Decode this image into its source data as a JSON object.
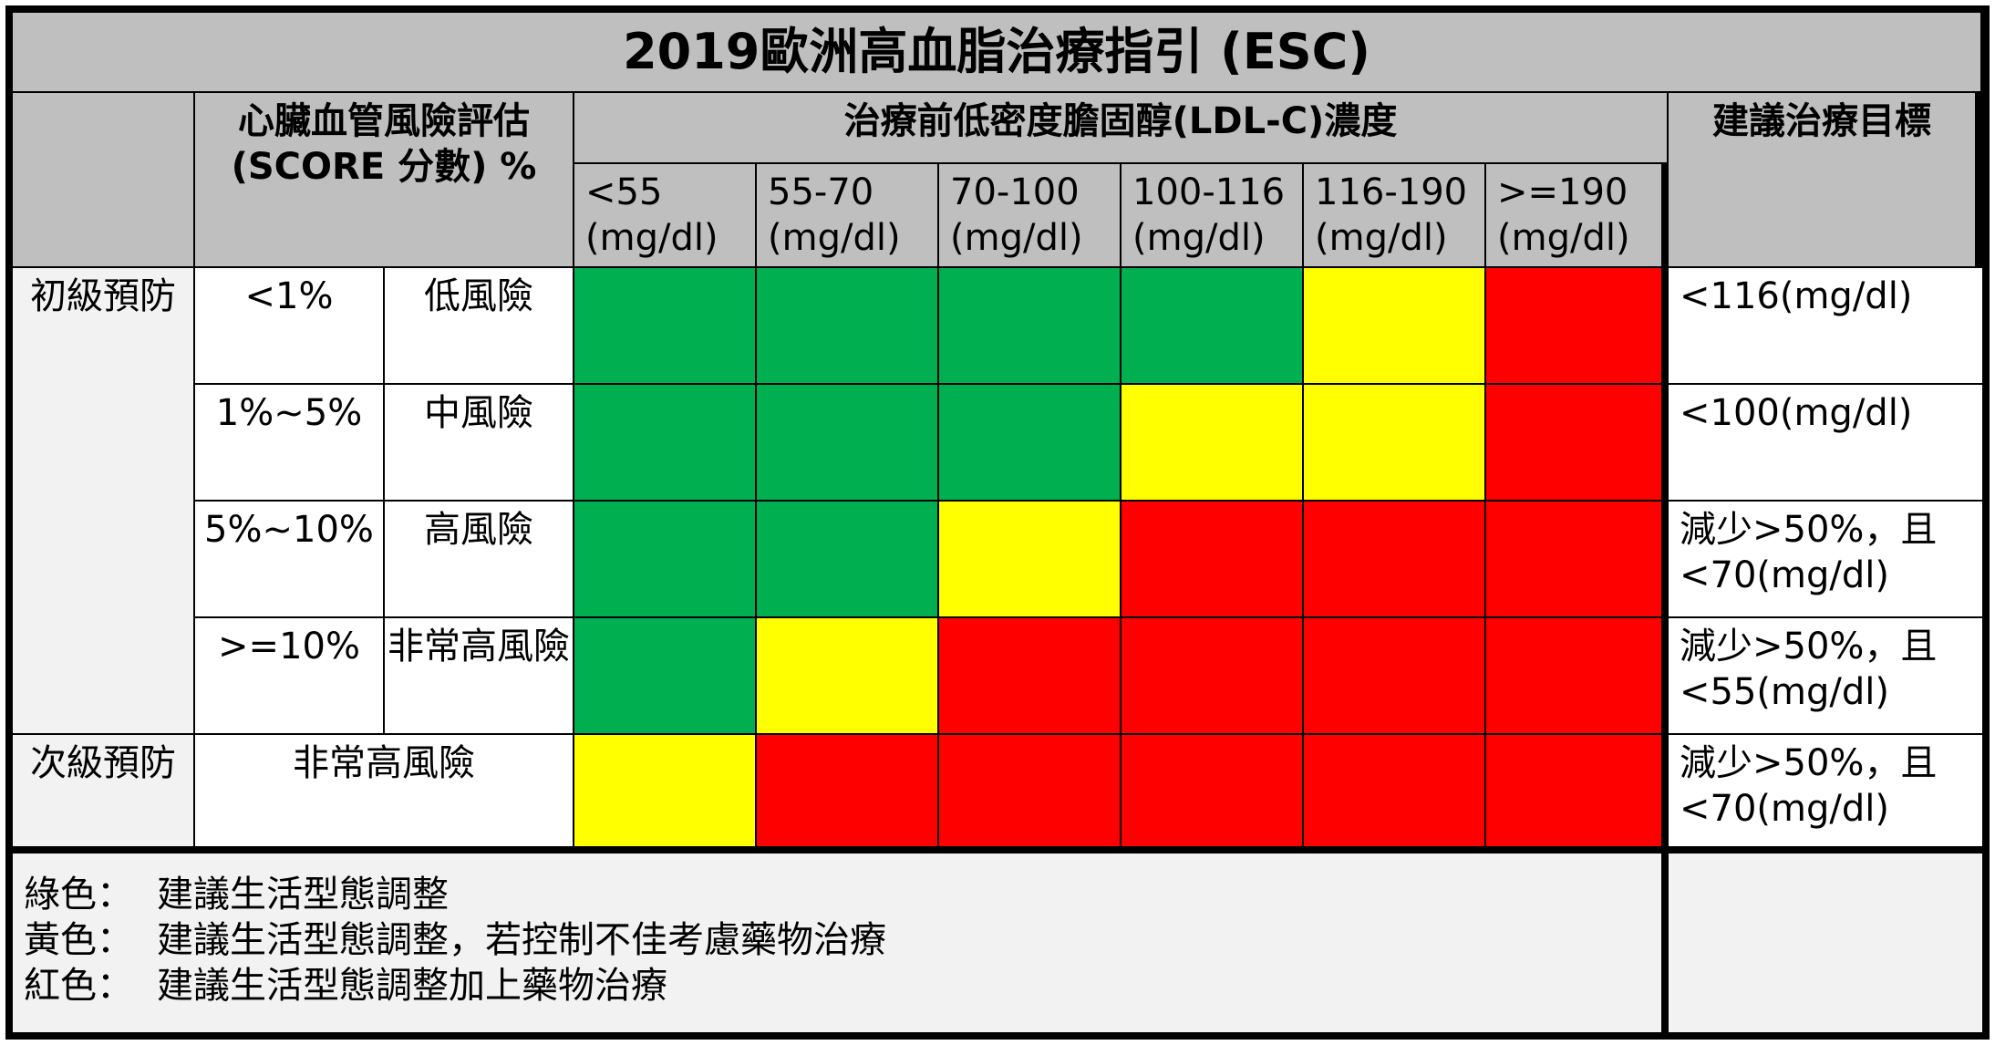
{
  "title": "2019歐洲高血脂治療指引 (ESC)",
  "header": {
    "risk_assessment_line1": "心臟血管風險評估",
    "risk_assessment_line2": "(SCORE 分數) %",
    "ldl_title": "治療前低密度膽固醇(LDL-C)濃度",
    "target_title": "建議治療目標",
    "ldl_ranges": [
      {
        "range": "<55",
        "unit": "(mg/dl)"
      },
      {
        "range": "55-70",
        "unit": "(mg/dl)"
      },
      {
        "range": "70-100",
        "unit": "(mg/dl)"
      },
      {
        "range": "100-116",
        "unit": "(mg/dl)"
      },
      {
        "range": "116-190",
        "unit": "(mg/dl)"
      },
      {
        "range": ">=190",
        "unit": "(mg/dl)"
      }
    ]
  },
  "groups": {
    "primary": "初級預防",
    "secondary": "次級預防"
  },
  "rows": [
    {
      "score": "<1%",
      "risk": "低風險",
      "target": "<116(mg/dl)",
      "colors": [
        "green",
        "green",
        "green",
        "green",
        "yellow",
        "red"
      ]
    },
    {
      "score": "1%~5%",
      "risk": "中風險",
      "target": "<100(mg/dl)",
      "colors": [
        "green",
        "green",
        "green",
        "yellow",
        "yellow",
        "red"
      ]
    },
    {
      "score": "5%~10%",
      "risk": "高風險",
      "target": "減少>50%，且<70(mg/dl)",
      "colors": [
        "green",
        "green",
        "yellow",
        "red",
        "red",
        "red"
      ]
    },
    {
      "score": ">=10%",
      "risk": "非常高風險",
      "target": "減少>50%，且<55(mg/dl)",
      "colors": [
        "green",
        "yellow",
        "red",
        "red",
        "red",
        "red"
      ]
    }
  ],
  "secondary_row": {
    "risk": "非常高風險",
    "target": "減少>50%，且<70(mg/dl)",
    "colors": [
      "yellow",
      "red",
      "red",
      "red",
      "red",
      "red"
    ]
  },
  "palette": {
    "green": "#00b050",
    "yellow": "#ffff00",
    "red": "#ff0000"
  },
  "legend": [
    {
      "key": "綠色：",
      "text": "建議生活型態調整"
    },
    {
      "key": "黃色：",
      "text": "建議生活型態調整，若控制不佳考慮藥物治療"
    },
    {
      "key": "紅色：",
      "text": "建議生活型態調整加上藥物治療"
    }
  ]
}
